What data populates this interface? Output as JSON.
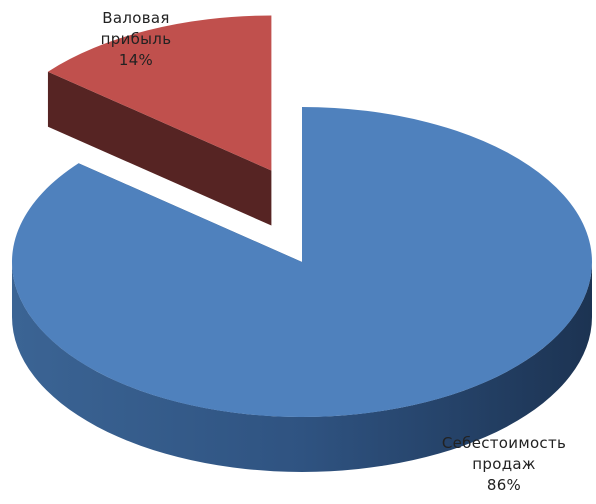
{
  "chart_data": {
    "type": "pie",
    "style": "3d-exploded",
    "title": "",
    "legend": false,
    "slices": [
      {
        "label_lines": [
          "Себестоимость",
          "продаж"
        ],
        "value": 86,
        "value_text": "86%",
        "color": "#4f81bd"
      },
      {
        "label_lines": [
          "Валовая",
          "прибыль"
        ],
        "value": 14,
        "value_text": "14%",
        "color": "#c0504d"
      }
    ]
  }
}
